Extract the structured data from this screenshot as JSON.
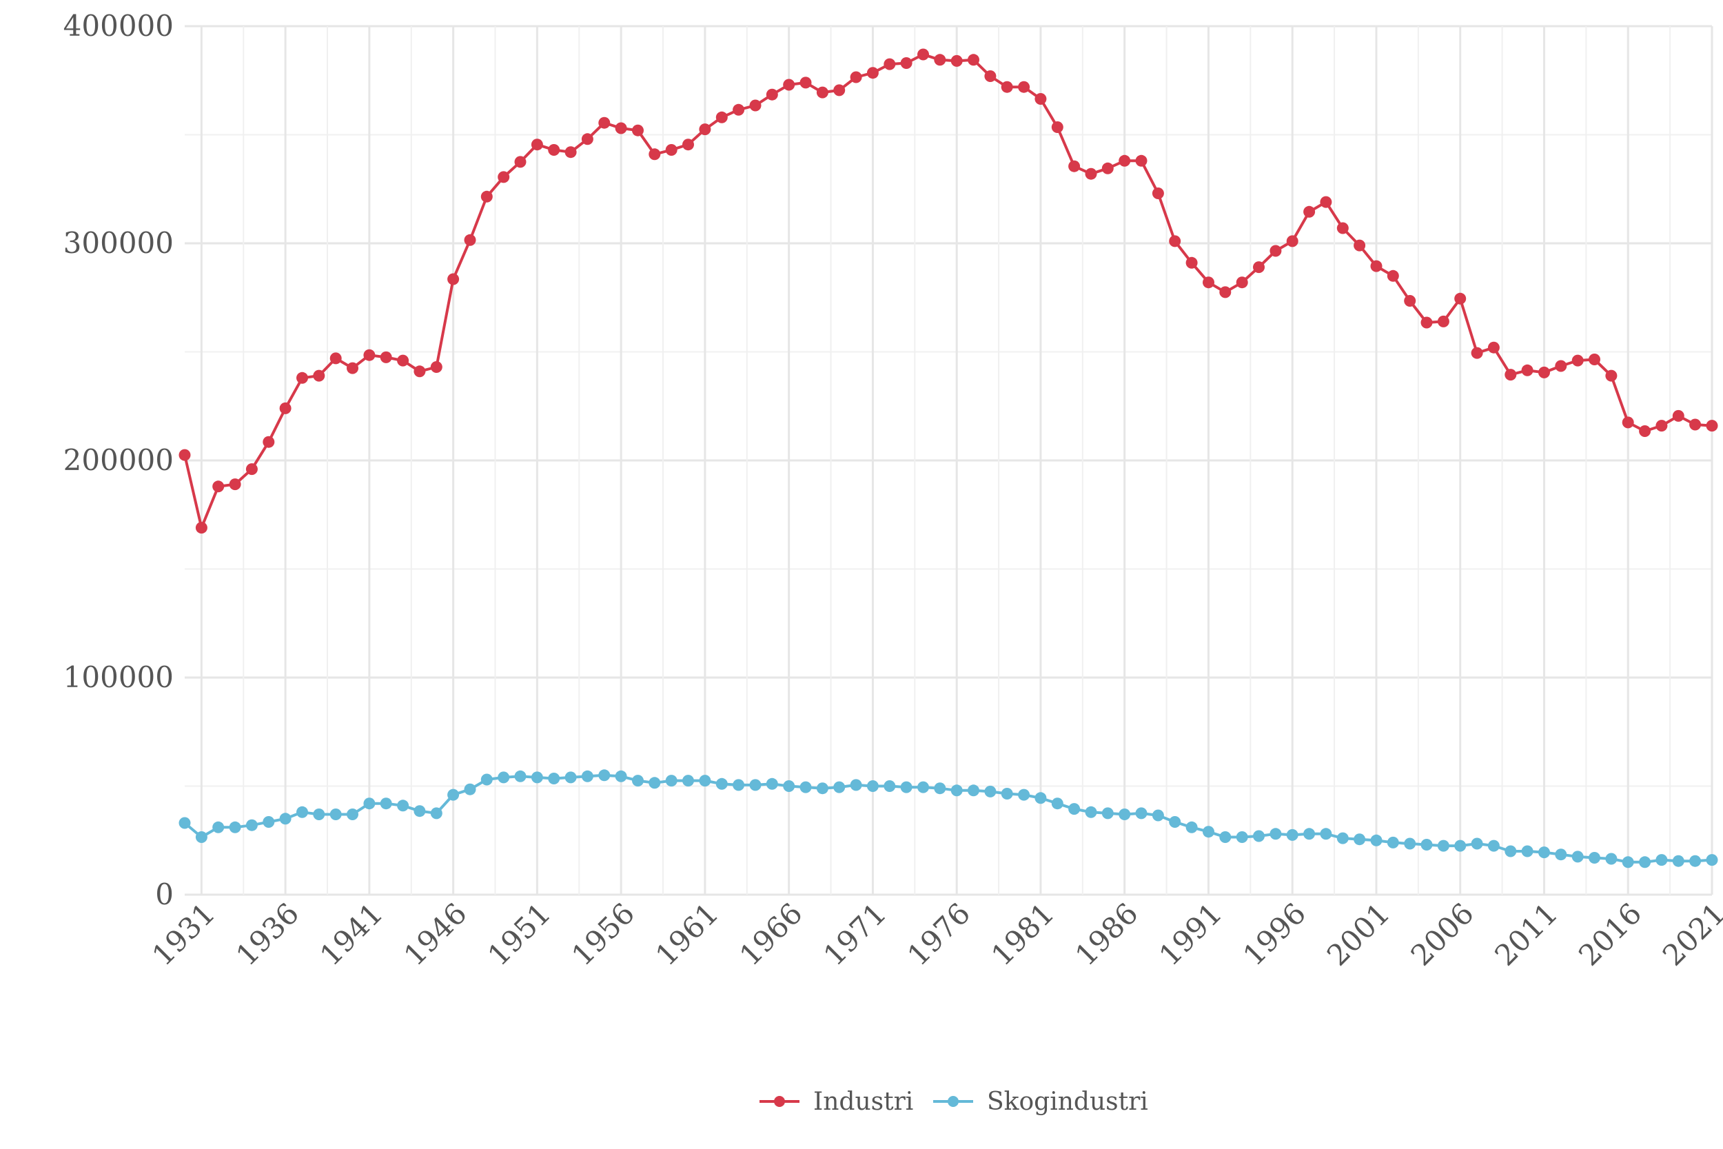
{
  "chart_data": {
    "type": "line",
    "title": "",
    "xlabel": "",
    "ylabel": "",
    "ylim": [
      0,
      400000
    ],
    "xlim": [
      1930,
      2021
    ],
    "grid": true,
    "legend_position": "bottom-center",
    "y_ticks": [
      "0",
      "100000",
      "200000",
      "300000",
      "400000"
    ],
    "x_ticks": [
      "1931",
      "1936",
      "1941",
      "1946",
      "1951",
      "1956",
      "1961",
      "1966",
      "1971",
      "1976",
      "1981",
      "1986",
      "1991",
      "1996",
      "2001",
      "2006",
      "2011",
      "2016",
      "2021"
    ],
    "x": [
      1930,
      1931,
      1932,
      1933,
      1934,
      1935,
      1936,
      1937,
      1938,
      1939,
      1940,
      1941,
      1942,
      1943,
      1944,
      1945,
      1946,
      1947,
      1948,
      1949,
      1950,
      1951,
      1952,
      1953,
      1954,
      1955,
      1956,
      1957,
      1958,
      1959,
      1960,
      1961,
      1962,
      1963,
      1964,
      1965,
      1966,
      1967,
      1968,
      1969,
      1970,
      1971,
      1972,
      1973,
      1974,
      1975,
      1976,
      1977,
      1978,
      1979,
      1980,
      1981,
      1982,
      1983,
      1984,
      1985,
      1986,
      1987,
      1988,
      1989,
      1990,
      1991,
      1992,
      1993,
      1994,
      1995,
      1996,
      1997,
      1998,
      1999,
      2000,
      2001,
      2002,
      2003,
      2004,
      2005,
      2006,
      2007,
      2008,
      2009,
      2010,
      2011,
      2012,
      2013,
      2014,
      2015,
      2016,
      2017,
      2018,
      2019,
      2020,
      2021
    ],
    "series": [
      {
        "name": "Industri",
        "color": "#d7394a",
        "values": [
          202500,
          169000,
          188000,
          189000,
          196000,
          208500,
          224000,
          238000,
          239000,
          247000,
          242500,
          248500,
          247500,
          246000,
          241000,
          243000,
          283500,
          301500,
          321500,
          330500,
          337500,
          345500,
          343000,
          342000,
          348000,
          355500,
          353000,
          352000,
          341000,
          343000,
          345500,
          352500,
          358000,
          361500,
          363500,
          368500,
          373000,
          374000,
          369500,
          370500,
          376500,
          378500,
          382500,
          383000,
          387000,
          384500,
          384000,
          384500,
          377000,
          372000,
          372000,
          366500,
          353500,
          335500,
          332000,
          334500,
          338000,
          338000,
          323000,
          301000,
          291000,
          282000,
          277500,
          282000,
          289000,
          296500,
          301000,
          314500,
          319000,
          307000,
          299000,
          289500,
          285000,
          273500,
          263500,
          264000,
          274500,
          249500,
          252000,
          239500,
          241500,
          240500,
          243500,
          246000,
          246500,
          239000,
          217500,
          213500,
          216000,
          220500,
          216500,
          216000
        ]
      },
      {
        "name": "Skogindustri",
        "color": "#64b9d8",
        "values": [
          33000,
          26500,
          31000,
          31000,
          32000,
          33500,
          35000,
          38000,
          37000,
          37000,
          37000,
          42000,
          42000,
          41000,
          38500,
          37500,
          46000,
          48500,
          53000,
          54000,
          54500,
          54000,
          53500,
          54000,
          54500,
          55000,
          54500,
          52500,
          51500,
          52500,
          52500,
          52500,
          51000,
          50500,
          50500,
          51000,
          50000,
          49500,
          49000,
          49500,
          50500,
          50000,
          50000,
          49500,
          49500,
          49000,
          48000,
          48000,
          47500,
          46500,
          46000,
          44500,
          42000,
          39500,
          38000,
          37500,
          37000,
          37500,
          36500,
          33500,
          31000,
          29000,
          26500,
          26500,
          27000,
          28000,
          27500,
          28000,
          28000,
          26000,
          25500,
          25000,
          24000,
          23500,
          23000,
          22500,
          22500,
          23500,
          22500,
          20000,
          20000,
          19500,
          18500,
          17500,
          17000,
          16500,
          15000,
          15000,
          16000,
          15500,
          15500,
          16000
        ]
      }
    ]
  }
}
